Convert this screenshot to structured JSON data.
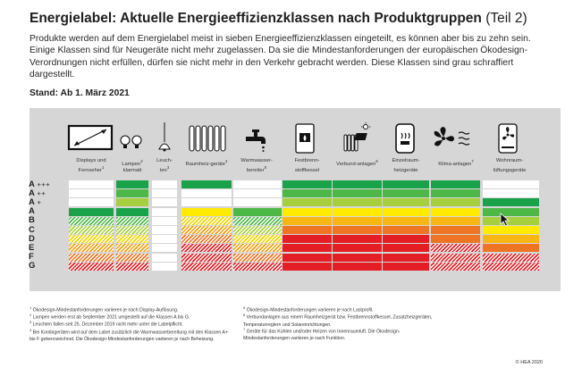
{
  "title": "Energielabel: Aktuelle Energieeffizienzklassen nach Produktgruppen",
  "title_part": "(Teil 2)",
  "intro": "Produkte werden auf dem Energielabel meist in sieben Energieeffizienzklassen eingeteilt, es können aber bis zu zehn sein. Einige Klassen sind für Neugeräte nicht mehr zugelassen. Da sie die Mindestanforderungen der europäischen Ökodesign-Verordnungen nicht erfüllen, dürfen sie nicht mehr in den Verkehr gebracht werden. Diese Klassen sind grau schraffiert dargestellt.",
  "stand": "Stand: Ab 1. März 2021",
  "row_labels": [
    {
      "letter": "A",
      "plus": "+++"
    },
    {
      "letter": "A",
      "plus": "++"
    },
    {
      "letter": "A",
      "plus": "+"
    },
    {
      "letter": "A",
      "plus": ""
    },
    {
      "letter": "B",
      "plus": ""
    },
    {
      "letter": "C",
      "plus": ""
    },
    {
      "letter": "D",
      "plus": ""
    },
    {
      "letter": "E",
      "plus": ""
    },
    {
      "letter": "F",
      "plus": ""
    },
    {
      "letter": "G",
      "plus": ""
    }
  ],
  "groups": [
    {
      "label": "Displays und Fernseher",
      "sup": "1",
      "icon": "tv-icon",
      "cells": [
        "w",
        "w",
        "w",
        "dg",
        "h-g",
        "h-lg",
        "h-y",
        "h-o",
        "h-r",
        "h-rr"
      ]
    },
    {
      "label": "Lampen",
      "sup": "2",
      "label2": "klarmatt",
      "icon": "lamp-icon",
      "cells": [
        "dg",
        "g",
        "lg",
        "dg",
        "h-g",
        "h-lg",
        "h-y",
        "h-o",
        "h-r",
        "h-rr"
      ]
    },
    {
      "label": "Leuch-ten",
      "sup": "3",
      "icon": "pendant-light-icon",
      "cells": [
        "w",
        "w",
        "w",
        "w",
        "w",
        "w",
        "w",
        "w",
        "w",
        "w"
      ]
    },
    {
      "label": "Raumheiz-geräte",
      "sup": "4",
      "icon": "radiator-icon",
      "cells": [
        "dg",
        "w",
        "w",
        "y",
        "h-y",
        "h-o",
        "h-r",
        "h-rr",
        "h-rr",
        "h-rr"
      ]
    },
    {
      "label": "Warmwasser-bereiter",
      "sup": "5",
      "icon": "water-tap-icon",
      "cells": [
        "w",
        "w",
        "w",
        "g",
        "h-g",
        "h-lg",
        "h-y",
        "h-o",
        "h-r",
        "h-rr"
      ]
    },
    {
      "label": "Festbrenn-stoffkessel",
      "sup": "",
      "icon": "boiler-icon",
      "cells": [
        "dg",
        "g",
        "lg",
        "y",
        "o",
        "r",
        "rr",
        "rr",
        "rr",
        "rr"
      ]
    },
    {
      "label": "Verbund-anlagen",
      "sup": "6",
      "icon": "solar-heating-icon",
      "cells": [
        "dg",
        "g",
        "lg",
        "y",
        "o",
        "r",
        "rr",
        "rr",
        "rr",
        "rr"
      ]
    },
    {
      "label": "Einzelraum-heizgeräte",
      "sup": "",
      "icon": "stove-icon",
      "cells": [
        "dg",
        "g",
        "lg",
        "y",
        "o",
        "r",
        "rr",
        "rr",
        "rr",
        "rr"
      ]
    },
    {
      "label": "Klima-anlagen",
      "sup": "7",
      "icon": "fan-icon",
      "cells": [
        "dg",
        "g",
        "lg",
        "y",
        "o",
        "r",
        "r",
        "h-rr",
        "h-rr",
        "h-rr"
      ]
    },
    {
      "label": "Wohnraum-lüftungsgeräte",
      "sup": "",
      "icon": "ventilation-icon",
      "cells": [
        "w",
        "w",
        "dg",
        "g",
        "lg",
        "y",
        "o",
        "r",
        "h-rr",
        "h-rr"
      ]
    }
  ],
  "footnotes_left": [
    {
      "n": "1",
      "text": "Ökodesign-Mindestanforderungen variieren je nach Display-Auflösung."
    },
    {
      "n": "2",
      "text": "Lampen werden erst ab September 2021 umgestellt auf die Klassen A bis G."
    },
    {
      "n": "3",
      "text": "Leuchten fallen seit 25. Dezember 2019 nicht mehr unter die Labelpflicht."
    },
    {
      "n": "4",
      "text": "Bei Kombigeräten wird auf dem Label zusätzlich die Warmwasserbereitung mit den Klassen A+ bis F gekennzeichnet. Die Ökodesign-Mindestanforderungen variieren je nach Beheizung."
    }
  ],
  "footnotes_right": [
    {
      "n": "5",
      "text": "Ökodesign-Mindestanforderungen variieren je nach Lastprofil."
    },
    {
      "n": "6",
      "text": "Verbundanlagen aus einem Raumheizgerät bzw. Festbrennstoffkessel, Zusatzheizgeräten, Temperaturreglern und Solareinrichtungen."
    },
    {
      "n": "7",
      "text": "Geräte für das Kühlen und/oder Heizen von Innenraumluft. Die Ökodesign-Mindestanforderungen variieren je nach Funktion."
    }
  ],
  "copyright": "© HEA 2020",
  "colors": {
    "dark_green": "#1aa24b",
    "green": "#4db848",
    "light_green": "#a6cf3f",
    "yellow": "#ffea00",
    "orange": "#f8b615",
    "dark_orange": "#ee7523",
    "red": "#e31e24",
    "panel": "#d6d6d6"
  }
}
